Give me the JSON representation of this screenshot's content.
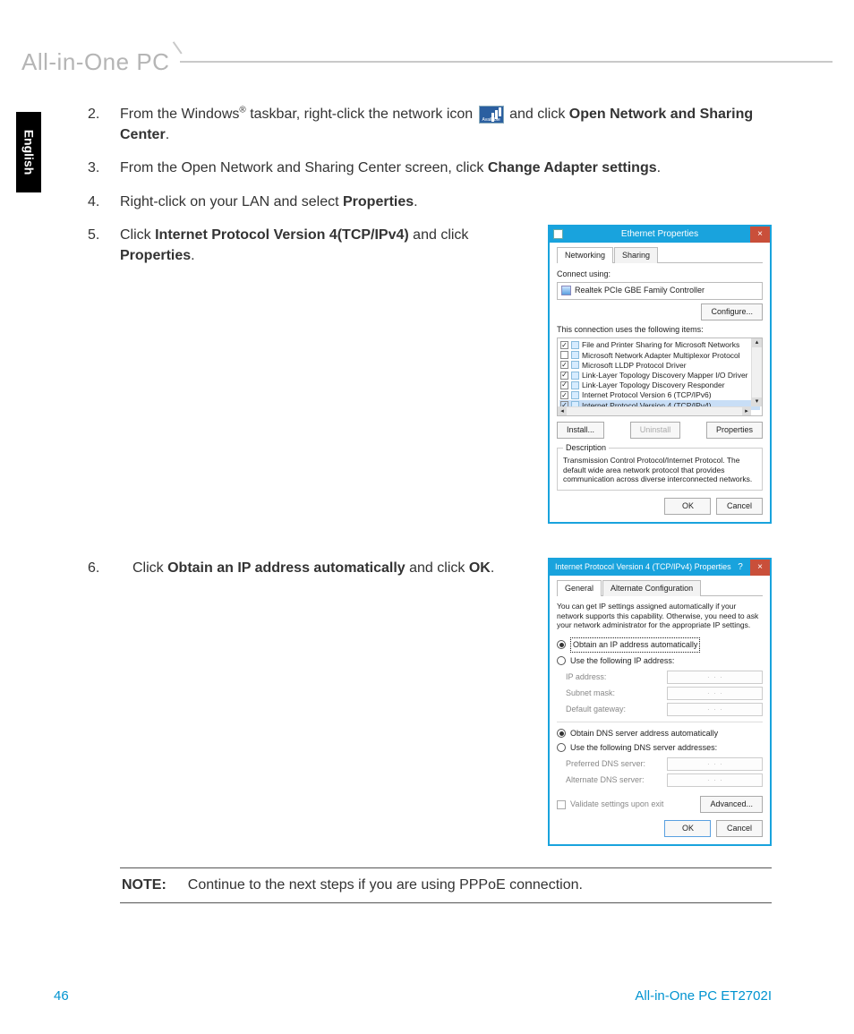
{
  "header": {
    "title": "All-in-One PC"
  },
  "side_tab": {
    "language": "English"
  },
  "steps": {
    "s2": {
      "num": "2.",
      "text_a": "From the Windows",
      "reg": "®",
      "text_b": " taskbar, right-click the network icon ",
      "text_c": " and click ",
      "bold_a": "Open Network and Sharing Center",
      "period": "."
    },
    "s3": {
      "num": "3.",
      "text": "From the Open Network and Sharing Center screen, click ",
      "bold": "Change Adapter settings",
      "period": "."
    },
    "s4": {
      "num": "4.",
      "text": "Right-click on your LAN and select ",
      "bold": "Properties",
      "period": "."
    },
    "s5": {
      "num": "5.",
      "text_a": "Click ",
      "bold_a": "Internet Protocol Version 4(TCP/IPv4)",
      "text_b": " and click ",
      "bold_b": "Properties",
      "period": "."
    },
    "s6": {
      "num": "6.",
      "text_a": "Click ",
      "bold_a": "Obtain an IP address automatically",
      "text_b": " and click ",
      "bold_b": "OK",
      "period": "."
    }
  },
  "dlg1": {
    "title": "Ethernet Properties",
    "tabs": {
      "networking": "Networking",
      "sharing": "Sharing"
    },
    "connect_label": "Connect using:",
    "adapter": "Realtek PCIe GBE Family Controller",
    "configure_btn": "Configure...",
    "items_label": "This connection uses the following items:",
    "items": [
      {
        "checked": true,
        "label": "File and Printer Sharing for Microsoft Networks"
      },
      {
        "checked": false,
        "label": "Microsoft Network Adapter Multiplexor Protocol"
      },
      {
        "checked": true,
        "label": "Microsoft LLDP Protocol Driver"
      },
      {
        "checked": true,
        "label": "Link-Layer Topology Discovery Mapper I/O Driver"
      },
      {
        "checked": true,
        "label": "Link-Layer Topology Discovery Responder"
      },
      {
        "checked": true,
        "label": "Internet Protocol Version 6 (TCP/IPv6)"
      },
      {
        "checked": true,
        "label": "Internet Protocol Version 4 (TCP/IPv4)",
        "selected": true
      }
    ],
    "install_btn": "Install...",
    "uninstall_btn": "Uninstall",
    "properties_btn": "Properties",
    "desc_title": "Description",
    "desc_text": "Transmission Control Protocol/Internet Protocol. The default wide area network protocol that provides communication across diverse interconnected networks.",
    "ok_btn": "OK",
    "cancel_btn": "Cancel"
  },
  "dlg2": {
    "title": "Internet Protocol Version 4 (TCP/IPv4) Properties",
    "tabs": {
      "general": "General",
      "alt": "Alternate Configuration"
    },
    "intro": "You can get IP settings assigned automatically if your network supports this capability. Otherwise, you need to ask your network administrator for the appropriate IP settings.",
    "r1": "Obtain an IP address automatically",
    "r2": "Use the following IP address:",
    "f_ip": "IP address:",
    "f_mask": "Subnet mask:",
    "f_gw": "Default gateway:",
    "r3": "Obtain DNS server address automatically",
    "r4": "Use the following DNS server addresses:",
    "f_dns1": "Preferred DNS server:",
    "f_dns2": "Alternate DNS server:",
    "validate": "Validate settings upon exit",
    "advanced_btn": "Advanced...",
    "ok_btn": "OK",
    "cancel_btn": "Cancel"
  },
  "note": {
    "label": "NOTE:",
    "text": "Continue to the next steps if you are using PPPoE connection."
  },
  "footer": {
    "page_num": "46",
    "model": "All-in-One PC ET2702I"
  },
  "colors": {
    "accent": "#19a3dd",
    "close": "#c94f3a",
    "link": "#0093d0"
  }
}
